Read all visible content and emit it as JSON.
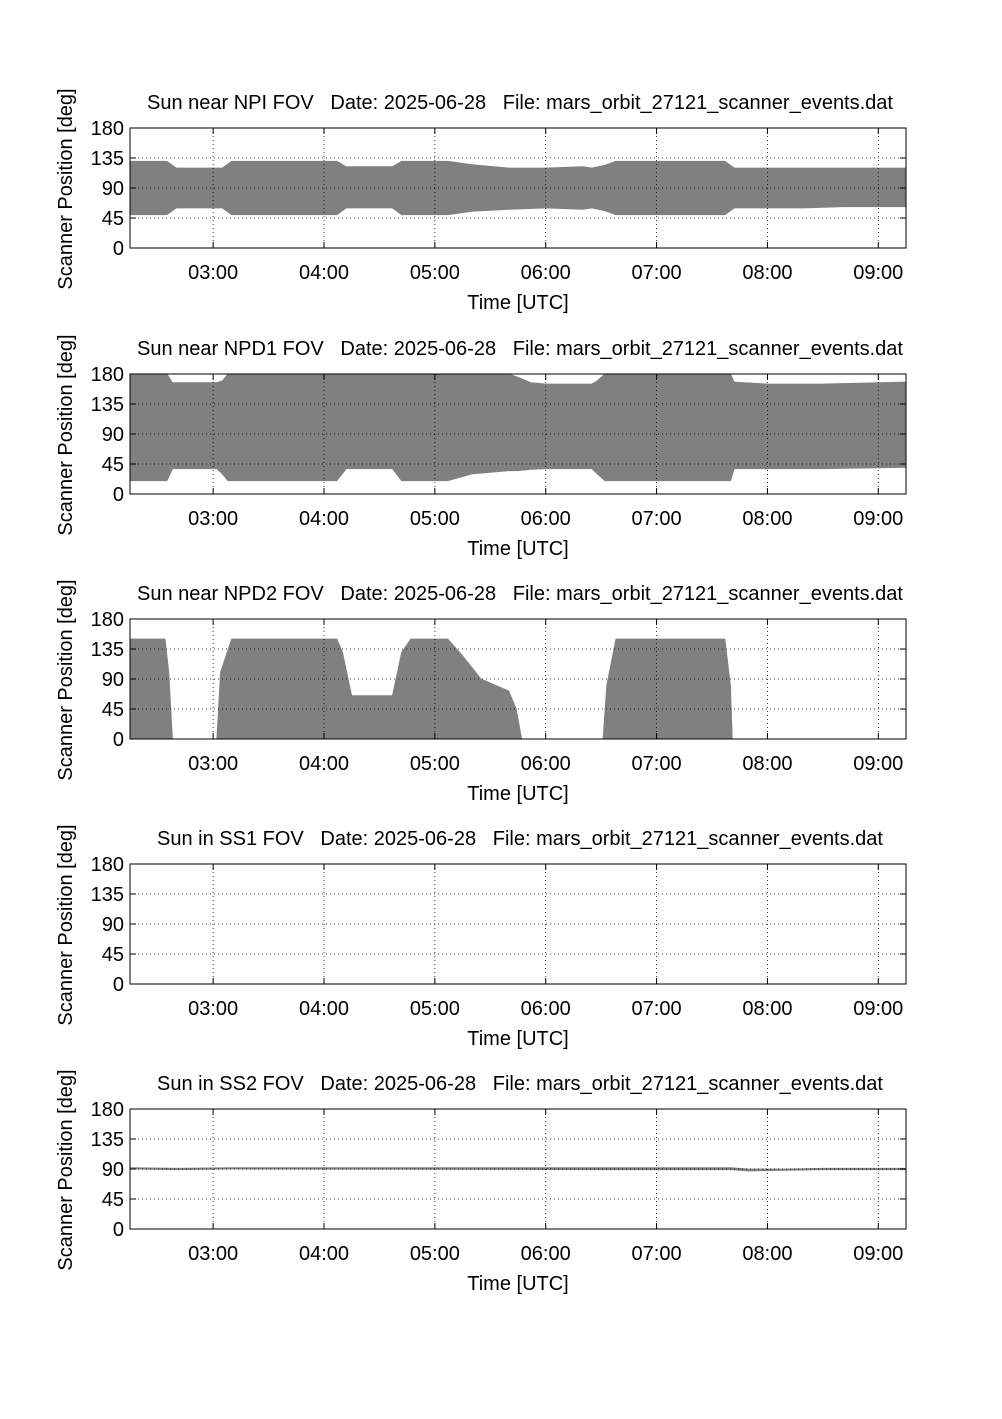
{
  "figure": {
    "fill_color": "#808080",
    "grid_style": "dotted",
    "background": "#ffffff"
  },
  "chart_data": [
    {
      "type": "area",
      "title": "Sun near NPI FOV   Date: 2025-06-28   File: mars_orbit_27121_scanner_events.dat",
      "xlabel": "Time [UTC]",
      "ylabel": "Scanner Position [deg]",
      "xlim": [
        "02:15",
        "09:15"
      ],
      "ylim": [
        0,
        180
      ],
      "xticks": [
        "03:00",
        "04:00",
        "05:00",
        "06:00",
        "07:00",
        "08:00",
        "09:00"
      ],
      "yticks": [
        0,
        45,
        90,
        135,
        180
      ],
      "grid": true,
      "x": [
        "02:15",
        "02:35",
        "02:40",
        "03:05",
        "03:10",
        "04:07",
        "04:12",
        "04:37",
        "04:42",
        "05:07",
        "05:20",
        "05:40",
        "06:00",
        "06:20",
        "06:25",
        "06:32",
        "06:38",
        "07:37",
        "07:42",
        "08:00",
        "08:20",
        "08:40",
        "09:15"
      ],
      "upper": [
        130,
        130,
        120,
        120,
        130,
        130,
        122,
        122,
        130,
        130,
        125,
        120,
        120,
        122,
        120,
        124,
        130,
        130,
        120,
        120,
        120,
        120,
        120
      ],
      "lower": [
        50,
        50,
        60,
        60,
        50,
        50,
        60,
        60,
        50,
        50,
        55,
        58,
        60,
        58,
        60,
        56,
        50,
        50,
        60,
        60,
        60,
        62,
        62
      ]
    },
    {
      "type": "area",
      "title": "Sun near NPD1 FOV   Date: 2025-06-28   File: mars_orbit_27121_scanner_events.dat",
      "xlabel": "Time [UTC]",
      "ylabel": "Scanner Position [deg]",
      "xlim": [
        "02:15",
        "09:15"
      ],
      "ylim": [
        0,
        180
      ],
      "xticks": [
        "03:00",
        "04:00",
        "05:00",
        "06:00",
        "07:00",
        "08:00",
        "09:00"
      ],
      "yticks": [
        0,
        45,
        90,
        135,
        180
      ],
      "grid": true,
      "x": [
        "02:15",
        "02:35",
        "02:38",
        "03:02",
        "03:05",
        "03:08",
        "03:10",
        "04:07",
        "04:12",
        "04:37",
        "04:42",
        "05:07",
        "05:20",
        "05:40",
        "05:45",
        "05:52",
        "06:00",
        "06:25",
        "06:28",
        "06:32",
        "06:38",
        "07:37",
        "07:40",
        "07:42",
        "08:00",
        "08:30",
        "09:15"
      ],
      "upper": [
        180,
        180,
        167,
        167,
        170,
        180,
        180,
        180,
        180,
        180,
        180,
        180,
        180,
        180,
        175,
        167,
        165,
        165,
        170,
        180,
        180,
        180,
        180,
        168,
        165,
        165,
        168
      ],
      "lower": [
        20,
        20,
        38,
        38,
        30,
        20,
        20,
        20,
        38,
        38,
        20,
        20,
        30,
        35,
        35,
        37,
        38,
        38,
        30,
        20,
        20,
        20,
        20,
        38,
        38,
        38,
        40
      ]
    },
    {
      "type": "area",
      "title": "Sun near NPD2 FOV   Date: 2025-06-28   File: mars_orbit_27121_scanner_events.dat",
      "xlabel": "Time [UTC]",
      "ylabel": "Scanner Position [deg]",
      "xlim": [
        "02:15",
        "09:15"
      ],
      "ylim": [
        0,
        180
      ],
      "xticks": [
        "03:00",
        "04:00",
        "05:00",
        "06:00",
        "07:00",
        "08:00",
        "09:00"
      ],
      "yticks": [
        0,
        45,
        90,
        135,
        180
      ],
      "grid": true,
      "x": [
        "02:15",
        "02:34",
        "02:36",
        "02:38",
        "03:02",
        "03:04",
        "03:10",
        "04:07",
        "04:10",
        "04:15",
        "04:37",
        "04:42",
        "04:47",
        "05:07",
        "05:15",
        "05:25",
        "05:35",
        "05:40",
        "05:44",
        "05:47",
        "06:31",
        "06:33",
        "06:38",
        "07:37",
        "07:40",
        "07:41"
      ],
      "upper": [
        150,
        150,
        100,
        0,
        0,
        100,
        150,
        150,
        130,
        65,
        65,
        130,
        150,
        150,
        125,
        90,
        78,
        72,
        45,
        0,
        0,
        80,
        150,
        150,
        80,
        0
      ],
      "lower": [
        0,
        0,
        0,
        0,
        0,
        0,
        0,
        0,
        0,
        0,
        0,
        0,
        0,
        0,
        0,
        0,
        0,
        0,
        0,
        0,
        0,
        0,
        0,
        0,
        0,
        0
      ]
    },
    {
      "type": "area",
      "title": "Sun in SS1 FOV   Date: 2025-06-28   File: mars_orbit_27121_scanner_events.dat",
      "xlabel": "Time [UTC]",
      "ylabel": "Scanner Position [deg]",
      "xlim": [
        "02:15",
        "09:15"
      ],
      "ylim": [
        0,
        180
      ],
      "xticks": [
        "03:00",
        "04:00",
        "05:00",
        "06:00",
        "07:00",
        "08:00",
        "09:00"
      ],
      "yticks": [
        0,
        45,
        90,
        135,
        180
      ],
      "grid": true,
      "x": [],
      "upper": [],
      "lower": []
    },
    {
      "type": "area",
      "title": "Sun in SS2 FOV   Date: 2025-06-28   File: mars_orbit_27121_scanner_events.dat",
      "xlabel": "Time [UTC]",
      "ylabel": "Scanner Position [deg]",
      "xlim": [
        "02:15",
        "09:15"
      ],
      "ylim": [
        0,
        180
      ],
      "xticks": [
        "03:00",
        "04:00",
        "05:00",
        "06:00",
        "07:00",
        "08:00",
        "09:00"
      ],
      "yticks": [
        0,
        45,
        90,
        135,
        180
      ],
      "grid": true,
      "x": [
        "02:15",
        "02:40",
        "03:10",
        "06:30",
        "07:40",
        "07:50",
        "08:10",
        "08:30",
        "09:15"
      ],
      "upper": [
        92,
        91,
        92,
        92,
        92,
        90,
        90,
        91,
        91
      ],
      "lower": [
        90,
        89,
        90,
        89,
        89,
        87,
        88,
        89,
        89
      ]
    }
  ]
}
